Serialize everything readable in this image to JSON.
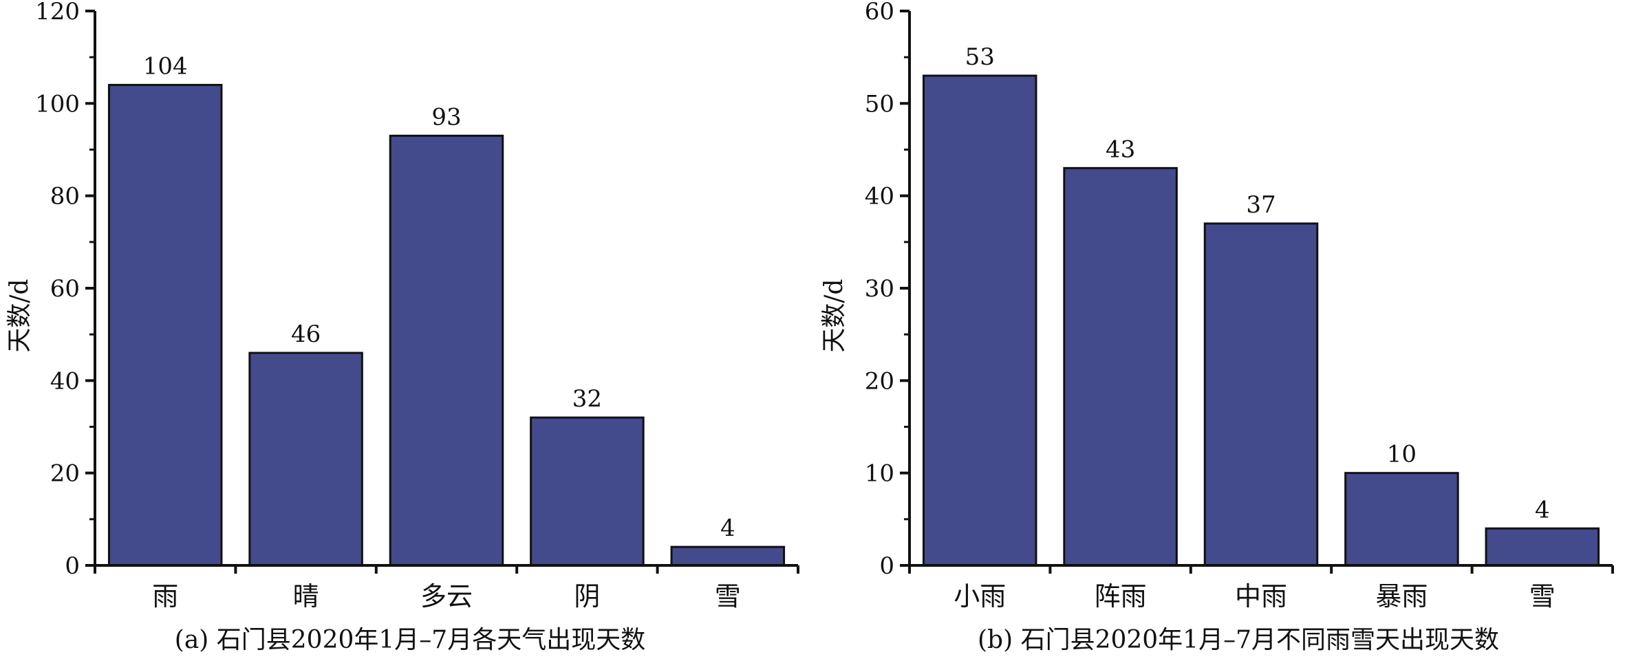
{
  "colors": {
    "bar": "#434b8c",
    "bar_stroke": "#111111",
    "axis": "#111111",
    "background": "#ffffff"
  },
  "chart_data": [
    {
      "type": "bar",
      "caption": "(a) 石门县2020年1月–7月各天气出现天数",
      "ylabel": "天数/d",
      "xlabel": "",
      "categories": [
        "雨",
        "晴",
        "多云",
        "阴",
        "雪"
      ],
      "values": [
        104,
        46,
        93,
        32,
        4
      ],
      "data_labels": [
        "104",
        "46",
        "93",
        "32",
        "4"
      ],
      "ylim": [
        0,
        120
      ],
      "yticks": [
        0,
        20,
        40,
        60,
        80,
        100,
        120
      ],
      "ytick_labels": [
        "0",
        "20",
        "40",
        "60",
        "80",
        "100",
        "120"
      ],
      "minor_step": 10,
      "grid": false,
      "legend": "none"
    },
    {
      "type": "bar",
      "caption": "(b) 石门县2020年1月–7月不同雨雪天出现天数",
      "ylabel": "天数/d",
      "xlabel": "",
      "categories": [
        "小雨",
        "阵雨",
        "中雨",
        "暴雨",
        "雪"
      ],
      "values": [
        53,
        43,
        37,
        10,
        4
      ],
      "data_labels": [
        "53",
        "43",
        "37",
        "10",
        "4"
      ],
      "ylim": [
        0,
        60
      ],
      "yticks": [
        0,
        10,
        20,
        30,
        40,
        50,
        60
      ],
      "ytick_labels": [
        "0",
        "10",
        "20",
        "30",
        "40",
        "50",
        "60"
      ],
      "minor_step": 5,
      "grid": false,
      "legend": "none"
    }
  ]
}
